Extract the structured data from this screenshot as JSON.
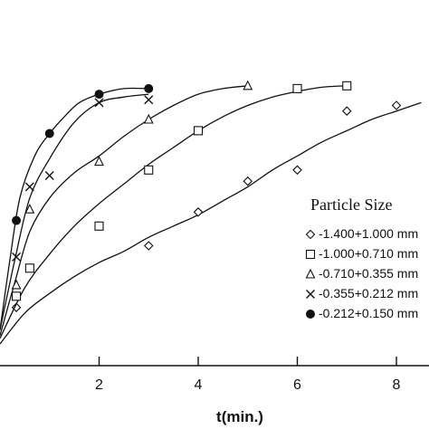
{
  "chart_data": {
    "type": "scatter",
    "title": "",
    "xlabel": "t(min.)",
    "ylabel": "",
    "xlim": [
      0,
      8.6
    ],
    "x_ticks": [
      2,
      4,
      6,
      8
    ],
    "x_tick_labels": [
      "2",
      "4",
      "6",
      "8"
    ],
    "legend": {
      "title": "Particle Size",
      "placement": "right"
    },
    "series": [
      {
        "name": "-1.400+1.000 mm",
        "marker": "diamond",
        "x": [
          0.33,
          3,
          4,
          5,
          6,
          7.0,
          8.0
        ],
        "y": [
          0.13,
          0.35,
          0.47,
          0.58,
          0.62,
          0.83,
          0.85
        ],
        "curve_x": [
          0,
          0.5,
          1,
          1.5,
          2,
          2.5,
          3,
          3.5,
          4,
          4.5,
          5,
          5.5,
          6,
          6.5,
          7,
          7.5,
          8,
          8.5
        ],
        "curve_y": [
          0,
          0.11,
          0.18,
          0.24,
          0.29,
          0.33,
          0.38,
          0.42,
          0.46,
          0.51,
          0.56,
          0.62,
          0.67,
          0.72,
          0.76,
          0.8,
          0.83,
          0.86
        ]
      },
      {
        "name": "-1.000+0.710 mm",
        "marker": "square",
        "x": [
          0.33,
          0.6,
          2,
          3,
          4,
          6,
          7.0
        ],
        "y": [
          0.17,
          0.27,
          0.42,
          0.62,
          0.76,
          0.91,
          0.92
        ],
        "curve_x": [
          0,
          0.5,
          1,
          1.5,
          2,
          2.5,
          3,
          3.5,
          4,
          4.5,
          5,
          5.5,
          6,
          6.5,
          7
        ],
        "curve_y": [
          0.02,
          0.2,
          0.32,
          0.42,
          0.5,
          0.57,
          0.64,
          0.7,
          0.76,
          0.81,
          0.85,
          0.88,
          0.9,
          0.915,
          0.92
        ]
      },
      {
        "name": "-0.710+0.355 mm",
        "marker": "triangle",
        "x": [
          0.33,
          0.6,
          2,
          3,
          5
        ],
        "y": [
          0.21,
          0.48,
          0.65,
          0.8,
          0.92
        ],
        "curve_x": [
          0,
          0.3,
          0.6,
          1,
          1.5,
          2,
          2.5,
          3,
          3.5,
          4,
          4.5,
          5
        ],
        "curve_y": [
          0.03,
          0.22,
          0.4,
          0.52,
          0.61,
          0.67,
          0.74,
          0.8,
          0.85,
          0.89,
          0.91,
          0.92
        ]
      },
      {
        "name": "-0.355+0.212 mm",
        "marker": "x",
        "x": [
          0.33,
          0.6,
          1,
          2,
          3
        ],
        "y": [
          0.31,
          0.56,
          0.6,
          0.86,
          0.87
        ],
        "curve_x": [
          0,
          0.3,
          0.6,
          1,
          1.5,
          2,
          2.5,
          3
        ],
        "curve_y": [
          0.05,
          0.3,
          0.52,
          0.66,
          0.79,
          0.86,
          0.88,
          0.89
        ]
      },
      {
        "name": "-0.212+0.150 mm",
        "marker": "circle",
        "x": [
          0.33,
          1,
          2,
          3
        ],
        "y": [
          0.44,
          0.75,
          0.89,
          0.91
        ],
        "curve_x": [
          0,
          0.2,
          0.4,
          0.7,
          1,
          1.3,
          1.6,
          2,
          2.5,
          3
        ],
        "curve_y": [
          0.05,
          0.3,
          0.52,
          0.67,
          0.75,
          0.81,
          0.86,
          0.89,
          0.91,
          0.91
        ]
      }
    ]
  }
}
